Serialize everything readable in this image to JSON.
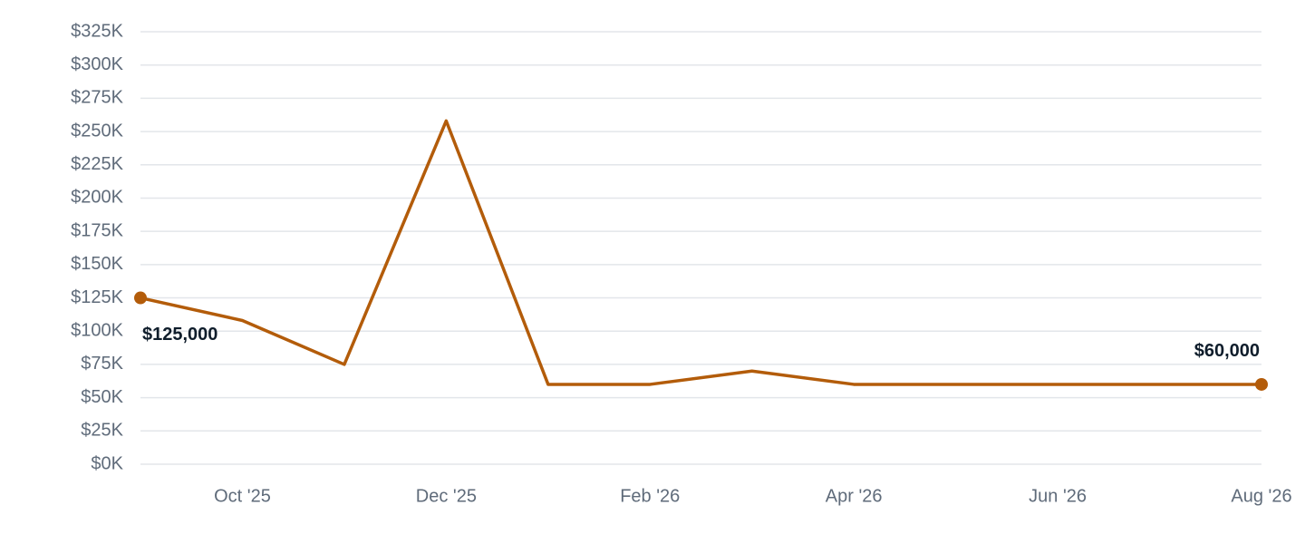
{
  "chart_data": {
    "type": "line",
    "categories": [
      null,
      "Oct '25",
      null,
      "Dec '25",
      null,
      "Feb '26",
      null,
      "Apr '26",
      null,
      "Jun '26",
      null,
      "Aug '26"
    ],
    "series": [
      {
        "color": "#b35c0a",
        "values": [
          125000,
          108000,
          75000,
          258000,
          60000,
          60000,
          70000,
          60000,
          60000,
          60000,
          60000,
          60000
        ],
        "value_labels": [
          "$125,000",
          null,
          null,
          null,
          null,
          null,
          null,
          null,
          null,
          null,
          null,
          "$60,000"
        ]
      }
    ],
    "ylim": [
      0,
      325000
    ],
    "yticks": [
      {
        "value": 0,
        "label": "$0K"
      },
      {
        "value": 25000,
        "label": "$25K"
      },
      {
        "value": 50000,
        "label": "$50K"
      },
      {
        "value": 75000,
        "label": "$75K"
      },
      {
        "value": 100000,
        "label": "$100K"
      },
      {
        "value": 125000,
        "label": "$125K"
      },
      {
        "value": 150000,
        "label": "$150K"
      },
      {
        "value": 175000,
        "label": "$175K"
      },
      {
        "value": 200000,
        "label": "$200K"
      },
      {
        "value": 225000,
        "label": "$225K"
      },
      {
        "value": 250000,
        "label": "$250K"
      },
      {
        "value": 275000,
        "label": "$275K"
      },
      {
        "value": 300000,
        "label": "$300K"
      },
      {
        "value": 325000,
        "label": "$325K"
      }
    ],
    "grid": true
  }
}
